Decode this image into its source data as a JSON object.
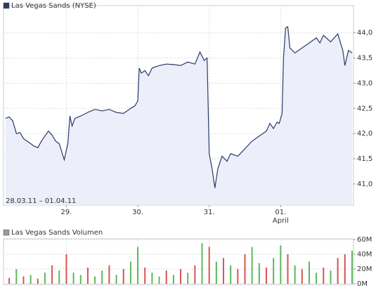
{
  "chart_data": [
    {
      "type": "line",
      "legend": "Las Vegas Sands (NYSE)",
      "legend_color": "#2b3a67",
      "color": "#2b3a67",
      "fill": "#eceefa",
      "annotation": "28.03.11 – 01.04.11",
      "x": [
        0.15,
        0.2,
        0.25,
        0.3,
        0.35,
        0.4,
        0.45,
        0.5,
        0.55,
        0.6,
        0.65,
        0.7,
        0.75,
        0.8,
        0.85,
        0.9,
        0.97,
        1.02,
        1.05,
        1.08,
        1.12,
        1.2,
        1.3,
        1.4,
        1.5,
        1.6,
        1.7,
        1.8,
        1.9,
        1.96,
        2.0,
        2.02,
        2.05,
        2.1,
        2.15,
        2.2,
        2.3,
        2.4,
        2.5,
        2.6,
        2.7,
        2.8,
        2.87,
        2.93,
        2.97,
        3.0,
        3.04,
        3.08,
        3.12,
        3.18,
        3.25,
        3.3,
        3.4,
        3.5,
        3.6,
        3.7,
        3.8,
        3.85,
        3.9,
        3.95,
        3.98,
        4.02,
        4.04,
        4.07,
        4.1,
        4.13,
        4.2,
        4.3,
        4.4,
        4.5,
        4.55,
        4.6,
        4.7,
        4.8,
        4.87,
        4.9,
        4.95,
        5.0
      ],
      "values": [
        42.3,
        42.33,
        42.25,
        42.0,
        42.02,
        41.9,
        41.85,
        41.8,
        41.75,
        41.72,
        41.85,
        41.95,
        42.05,
        41.97,
        41.85,
        41.8,
        41.48,
        41.8,
        42.35,
        42.15,
        42.3,
        42.35,
        42.42,
        42.48,
        42.45,
        42.48,
        42.42,
        42.4,
        42.5,
        42.55,
        42.65,
        43.3,
        43.2,
        43.25,
        43.15,
        43.3,
        43.35,
        43.38,
        43.37,
        43.35,
        43.42,
        43.38,
        43.62,
        43.45,
        43.5,
        41.6,
        41.3,
        40.92,
        41.3,
        41.55,
        41.45,
        41.6,
        41.55,
        41.7,
        41.85,
        41.95,
        42.05,
        42.2,
        42.1,
        42.23,
        42.2,
        42.4,
        43.5,
        44.1,
        44.12,
        43.7,
        43.6,
        43.7,
        43.8,
        43.9,
        43.8,
        43.95,
        43.82,
        43.98,
        43.65,
        43.35,
        43.65,
        43.6
      ],
      "xlim": [
        0.12,
        5.02
      ],
      "xticks": [
        {
          "value": 1,
          "label": "29."
        },
        {
          "value": 2,
          "label": "30."
        },
        {
          "value": 3,
          "label": "31."
        },
        {
          "value": 4,
          "label": "01."
        }
      ],
      "month_ticks": [
        {
          "value": 4,
          "label": "April"
        }
      ],
      "ylim": [
        40.58,
        44.54
      ],
      "yticks": [
        {
          "value": 41,
          "label": "41,0"
        },
        {
          "value": 41.5,
          "label": "41,5"
        },
        {
          "value": 42,
          "label": "42,0"
        },
        {
          "value": 42.5,
          "label": "42,5"
        },
        {
          "value": 43,
          "label": "43,0"
        },
        {
          "value": 43.5,
          "label": "43,5"
        },
        {
          "value": 44,
          "label": "44,0"
        }
      ],
      "grid": true
    },
    {
      "type": "bar",
      "legend": "Las Vegas Sands Volumen",
      "legend_color": "#999999",
      "x": [
        0.2,
        0.3,
        0.4,
        0.5,
        0.6,
        0.7,
        0.8,
        0.9,
        1.0,
        1.1,
        1.2,
        1.3,
        1.4,
        1.5,
        1.6,
        1.7,
        1.8,
        1.9,
        2.0,
        2.1,
        2.2,
        2.3,
        2.4,
        2.5,
        2.6,
        2.7,
        2.8,
        2.9,
        3.0,
        3.1,
        3.2,
        3.3,
        3.4,
        3.5,
        3.6,
        3.7,
        3.8,
        3.9,
        4.0,
        4.1,
        4.2,
        4.3,
        4.4,
        4.5,
        4.6,
        4.7,
        4.8,
        4.9,
        5.0
      ],
      "values": [
        8,
        20,
        10,
        12,
        7,
        15,
        25,
        18,
        40,
        15,
        12,
        22,
        10,
        18,
        25,
        12,
        20,
        30,
        50,
        22,
        15,
        10,
        18,
        12,
        20,
        15,
        25,
        55,
        50,
        30,
        35,
        25,
        20,
        40,
        50,
        28,
        22,
        35,
        52,
        40,
        25,
        20,
        30,
        15,
        22,
        18,
        35,
        40,
        45
      ],
      "direction": [
        "down",
        "up",
        "down",
        "up",
        "down",
        "up",
        "down",
        "up",
        "down",
        "up",
        "up",
        "down",
        "up",
        "up",
        "down",
        "up",
        "down",
        "up",
        "up",
        "down",
        "up",
        "up",
        "down",
        "up",
        "down",
        "up",
        "down",
        "up",
        "down",
        "up",
        "down",
        "up",
        "down",
        "down",
        "up",
        "up",
        "down",
        "up",
        "up",
        "down",
        "up",
        "down",
        "up",
        "up",
        "down",
        "up",
        "down",
        "down",
        "up"
      ],
      "colors": {
        "up": "#5cb85c",
        "down": "#d9534f"
      },
      "xlim": [
        0.12,
        5.02
      ],
      "xticks": [
        1,
        2,
        3,
        4
      ],
      "ylim": [
        0,
        60
      ],
      "yticks": [
        {
          "value": 0,
          "label": "0M"
        },
        {
          "value": 20,
          "label": "20M"
        },
        {
          "value": 40,
          "label": "40M"
        },
        {
          "value": 60,
          "label": "60M"
        }
      ],
      "grid": true
    }
  ]
}
